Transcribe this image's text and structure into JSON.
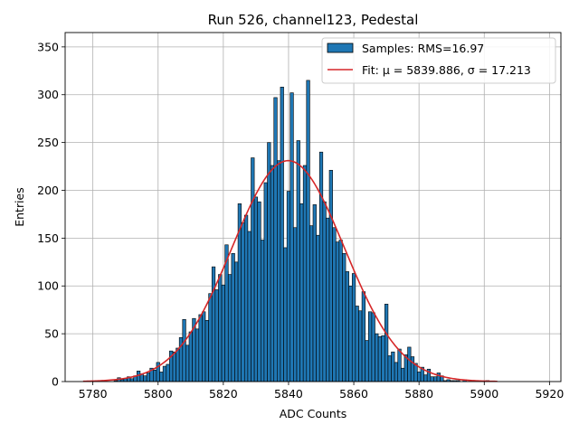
{
  "chart_data": {
    "type": "bar",
    "title": "Run 526, channel123, Pedestal",
    "xlabel": "ADC Counts",
    "ylabel": "Entries",
    "xlim": [
      5771.5,
      5923.5
    ],
    "ylim": [
      0,
      365
    ],
    "xticks": [
      5780,
      5800,
      5820,
      5840,
      5860,
      5880,
      5900,
      5920
    ],
    "yticks": [
      0,
      50,
      100,
      150,
      200,
      250,
      300,
      350
    ],
    "grid": true,
    "legend_position": "top-right",
    "bar_color": "#1f77b4",
    "bar_edge_color": "#000000",
    "fit_color": "#d62728",
    "legend": [
      {
        "label": "Samples: RMS=16.97",
        "kind": "patch"
      },
      {
        "label": "Fit: μ = 5839.886, σ = 17.213",
        "kind": "line"
      }
    ],
    "histogram": {
      "bin_width": 1,
      "bins": [
        [
          5787,
          1
        ],
        [
          5788,
          4
        ],
        [
          5789,
          2
        ],
        [
          5790,
          3
        ],
        [
          5791,
          5
        ],
        [
          5792,
          3
        ],
        [
          5793,
          6
        ],
        [
          5794,
          11
        ],
        [
          5795,
          8
        ],
        [
          5796,
          6
        ],
        [
          5797,
          9
        ],
        [
          5798,
          14
        ],
        [
          5799,
          12
        ],
        [
          5800,
          20
        ],
        [
          5801,
          10
        ],
        [
          5802,
          16
        ],
        [
          5803,
          18
        ],
        [
          5804,
          32
        ],
        [
          5805,
          31
        ],
        [
          5806,
          35
        ],
        [
          5807,
          46
        ],
        [
          5808,
          65
        ],
        [
          5809,
          38
        ],
        [
          5810,
          52
        ],
        [
          5811,
          66
        ],
        [
          5812,
          55
        ],
        [
          5813,
          70
        ],
        [
          5814,
          73
        ],
        [
          5815,
          64
        ],
        [
          5816,
          92
        ],
        [
          5817,
          120
        ],
        [
          5818,
          96
        ],
        [
          5819,
          112
        ],
        [
          5820,
          101
        ],
        [
          5821,
          143
        ],
        [
          5822,
          112
        ],
        [
          5823,
          134
        ],
        [
          5824,
          125
        ],
        [
          5825,
          186
        ],
        [
          5826,
          166
        ],
        [
          5827,
          174
        ],
        [
          5828,
          157
        ],
        [
          5829,
          234
        ],
        [
          5830,
          193
        ],
        [
          5831,
          188
        ],
        [
          5832,
          148
        ],
        [
          5833,
          208
        ],
        [
          5834,
          250
        ],
        [
          5835,
          226
        ],
        [
          5836,
          297
        ],
        [
          5837,
          231
        ],
        [
          5838,
          308
        ],
        [
          5839,
          140
        ],
        [
          5840,
          199
        ],
        [
          5841,
          302
        ],
        [
          5842,
          161
        ],
        [
          5843,
          252
        ],
        [
          5844,
          186
        ],
        [
          5845,
          226
        ],
        [
          5846,
          315
        ],
        [
          5847,
          163
        ],
        [
          5848,
          185
        ],
        [
          5849,
          153
        ],
        [
          5850,
          240
        ],
        [
          5851,
          188
        ],
        [
          5852,
          171
        ],
        [
          5853,
          221
        ],
        [
          5854,
          161
        ],
        [
          5855,
          146
        ],
        [
          5856,
          148
        ],
        [
          5857,
          134
        ],
        [
          5858,
          115
        ],
        [
          5859,
          100
        ],
        [
          5860,
          113
        ],
        [
          5861,
          79
        ],
        [
          5862,
          74
        ],
        [
          5863,
          94
        ],
        [
          5864,
          43
        ],
        [
          5865,
          73
        ],
        [
          5866,
          72
        ],
        [
          5867,
          50
        ],
        [
          5868,
          47
        ],
        [
          5869,
          48
        ],
        [
          5870,
          81
        ],
        [
          5871,
          27
        ],
        [
          5872,
          31
        ],
        [
          5873,
          20
        ],
        [
          5874,
          34
        ],
        [
          5875,
          14
        ],
        [
          5876,
          28
        ],
        [
          5877,
          36
        ],
        [
          5878,
          26
        ],
        [
          5879,
          19
        ],
        [
          5880,
          10
        ],
        [
          5881,
          15
        ],
        [
          5882,
          7
        ],
        [
          5883,
          13
        ],
        [
          5884,
          5
        ],
        [
          5885,
          5
        ],
        [
          5886,
          9
        ],
        [
          5887,
          6
        ],
        [
          5888,
          1
        ],
        [
          5889,
          2
        ],
        [
          5890,
          1
        ],
        [
          5891,
          1
        ],
        [
          5892,
          1
        ],
        [
          5894,
          2
        ],
        [
          5901,
          1
        ]
      ]
    },
    "fit": {
      "type": "gaussian",
      "mu": 5839.886,
      "sigma": 17.213,
      "amplitude": 231,
      "x_range": [
        5777,
        5904
      ]
    }
  }
}
